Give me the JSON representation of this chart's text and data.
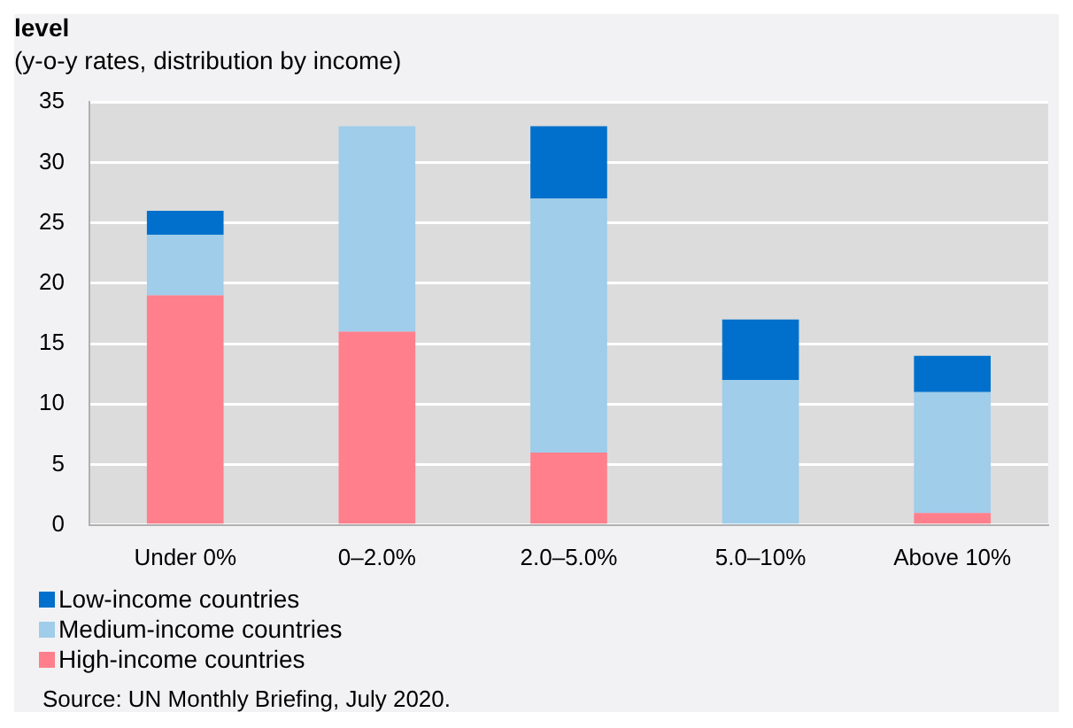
{
  "chart_data": {
    "type": "bar",
    "title": "level",
    "subtitle": "(y-o-y rates, distribution by income)",
    "categories": [
      "Under 0%",
      "0–2.0%",
      "2.0–5.0%",
      "5.0–10%",
      "Above 10%"
    ],
    "stacked": true,
    "series": [
      {
        "name": "High-income countries",
        "color": "#ff7f8c",
        "values": [
          19,
          16,
          6,
          0,
          1
        ]
      },
      {
        "name": "Medium-income countries",
        "color": "#9fcdea",
        "values": [
          5,
          17,
          21,
          12,
          10
        ]
      },
      {
        "name": "Low-income countries",
        "color": "#0070cc",
        "values": [
          2,
          0,
          6,
          5,
          3
        ]
      }
    ],
    "ylim": [
      0,
      35
    ],
    "yticks": [
      0,
      5,
      10,
      15,
      20,
      25,
      30,
      35
    ],
    "grid": "y",
    "legend": "bottom left",
    "annotations": [
      "Source: UN Monthly Briefing, July 2020."
    ]
  }
}
